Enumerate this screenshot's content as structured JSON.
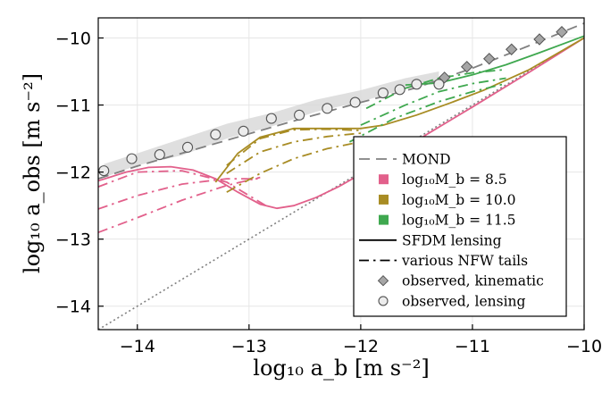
{
  "chart_data": {
    "type": "line",
    "xlabel": "log₁₀ a_b [m s⁻²]",
    "ylabel": "log₁₀ a_obs [m s⁻²]",
    "xlim": [
      -14.35,
      -10.0
    ],
    "ylim": [
      -14.35,
      -9.7
    ],
    "xticks": [
      -14,
      -13,
      -12,
      -11,
      -10
    ],
    "yticks": [
      -14,
      -13,
      -12,
      -11,
      -10
    ],
    "xtick_labels": [
      "−14",
      "−13",
      "−12",
      "−11",
      "−10"
    ],
    "ytick_labels": [
      "−14",
      "−13",
      "−12",
      "−11",
      "−10"
    ],
    "grid": true,
    "legend_position": "bottom-right",
    "colors": {
      "mond": "#808080",
      "mb85": "#e2608b",
      "mb100": "#a88c24",
      "mb115": "#3fa84f",
      "identity": "#808080",
      "band": "#d9d9d9"
    },
    "legend": [
      {
        "key": "mond",
        "label": "MOND",
        "style": "dashed"
      },
      {
        "key": "mb85",
        "label": "log₁₀M_b = 8.5",
        "style": "square"
      },
      {
        "key": "mb100",
        "label": "log₁₀M_b = 10.0",
        "style": "square"
      },
      {
        "key": "mb115",
        "label": "log₁₀M_b = 11.5",
        "style": "square"
      },
      {
        "key": "sfdm",
        "label": "SFDM lensing",
        "style": "solid"
      },
      {
        "key": "nfw",
        "label": "various NFW tails",
        "style": "dashdot"
      },
      {
        "key": "kin",
        "label": "observed, kinematic",
        "style": "diamond"
      },
      {
        "key": "lens",
        "label": "observed, lensing",
        "style": "circle"
      }
    ],
    "series": [
      {
        "name": "MOND",
        "color_key": "mond",
        "style": "dashed",
        "x": [
          -14.35,
          -14.0,
          -13.5,
          -13.0,
          -12.5,
          -12.0,
          -11.5,
          -11.0,
          -10.5,
          -10.0
        ],
        "y": [
          -12.1,
          -11.91,
          -11.67,
          -11.43,
          -11.19,
          -10.96,
          -10.74,
          -10.45,
          -10.12,
          -9.78
        ]
      },
      {
        "name": "identity",
        "color_key": "identity",
        "style": "dotted",
        "x": [
          -14.35,
          -10.0
        ],
        "y": [
          -14.35,
          -10.0
        ]
      },
      {
        "name": "SFDM lensing, log10 Mb = 8.5",
        "color_key": "mb85",
        "style": "solid",
        "x": [
          -14.35,
          -14.1,
          -13.9,
          -13.7,
          -13.5,
          -13.3,
          -13.1,
          -12.9,
          -12.75,
          -12.6,
          -12.4,
          -12.2,
          -12.0,
          -11.7,
          -11.4,
          -11.0,
          -10.5,
          -10.0
        ],
        "y": [
          -12.13,
          -12.0,
          -11.93,
          -11.92,
          -11.97,
          -12.1,
          -12.3,
          -12.48,
          -12.54,
          -12.5,
          -12.38,
          -12.22,
          -12.03,
          -11.75,
          -11.43,
          -11.03,
          -10.52,
          -10.0
        ]
      },
      {
        "name": "SFDM lensing, log10 Mb = 10.0",
        "color_key": "mb100",
        "style": "solid",
        "x": [
          -13.3,
          -13.1,
          -12.9,
          -12.6,
          -12.3,
          -12.0,
          -11.8,
          -11.5,
          -11.2,
          -10.9,
          -10.5,
          -10.0
        ],
        "y": [
          -12.15,
          -11.72,
          -11.48,
          -11.35,
          -11.35,
          -11.35,
          -11.3,
          -11.15,
          -10.97,
          -10.78,
          -10.48,
          -10.0
        ]
      },
      {
        "name": "SFDM lensing, log10 Mb = 11.5",
        "color_key": "mb115",
        "style": "solid",
        "x": [
          -11.6,
          -11.3,
          -11.0,
          -10.7,
          -10.4,
          -10.0
        ],
        "y": [
          -10.7,
          -10.67,
          -10.55,
          -10.4,
          -10.22,
          -9.97
        ]
      },
      {
        "name": "NFW tail 8.5 a",
        "color_key": "mb85",
        "style": "dashdot",
        "x": [
          -14.35,
          -14.0,
          -13.6,
          -13.2,
          -12.85
        ],
        "y": [
          -12.22,
          -12.0,
          -11.98,
          -12.15,
          -12.5
        ]
      },
      {
        "name": "NFW tail 8.5 b",
        "color_key": "mb85",
        "style": "dashdot",
        "x": [
          -14.35,
          -14.0,
          -13.6,
          -13.2,
          -12.9
        ],
        "y": [
          -12.55,
          -12.35,
          -12.18,
          -12.1,
          -12.1
        ]
      },
      {
        "name": "NFW tail 8.5 c",
        "color_key": "mb85",
        "style": "dashdot",
        "x": [
          -14.35,
          -14.0,
          -13.6,
          -13.2,
          -12.9
        ],
        "y": [
          -12.9,
          -12.68,
          -12.42,
          -12.2,
          -12.08
        ]
      },
      {
        "name": "NFW tail 10.0 a",
        "color_key": "mb100",
        "style": "dashdot",
        "x": [
          -13.2,
          -12.9,
          -12.6,
          -12.3,
          -12.0
        ],
        "y": [
          -11.9,
          -11.5,
          -11.37,
          -11.36,
          -11.38
        ]
      },
      {
        "name": "NFW tail 10.0 b",
        "color_key": "mb100",
        "style": "dashdot",
        "x": [
          -13.2,
          -12.9,
          -12.6,
          -12.3,
          -12.0
        ],
        "y": [
          -12.02,
          -11.7,
          -11.55,
          -11.47,
          -11.42
        ]
      },
      {
        "name": "NFW tail 10.0 c",
        "color_key": "mb100",
        "style": "dashdot",
        "x": [
          -13.2,
          -12.9,
          -12.6,
          -12.3,
          -12.0
        ],
        "y": [
          -12.3,
          -12.02,
          -11.8,
          -11.65,
          -11.55
        ]
      },
      {
        "name": "NFW tail 11.5 a",
        "color_key": "mb115",
        "style": "dashdot",
        "x": [
          -11.95,
          -11.6,
          -11.3,
          -11.0,
          -10.7
        ],
        "y": [
          -11.05,
          -10.75,
          -10.6,
          -10.52,
          -10.47
        ]
      },
      {
        "name": "NFW tail 11.5 b",
        "color_key": "mb115",
        "style": "dashdot",
        "x": [
          -12.0,
          -11.6,
          -11.3,
          -11.0,
          -10.7
        ],
        "y": [
          -11.3,
          -11.0,
          -10.8,
          -10.68,
          -10.6
        ]
      },
      {
        "name": "NFW tail 11.5 c",
        "color_key": "mb115",
        "style": "dashdot",
        "x": [
          -12.1,
          -11.7,
          -11.3,
          -11.0,
          -10.7
        ],
        "y": [
          -11.55,
          -11.2,
          -10.95,
          -10.8,
          -10.68
        ]
      }
    ],
    "band": {
      "name": "lensing uncertainty",
      "x": [
        -14.3,
        -14.0,
        -13.6,
        -13.2,
        -12.8,
        -12.4,
        -12.0,
        -11.6,
        -11.3
      ],
      "y_low": [
        -12.08,
        -11.9,
        -11.75,
        -11.5,
        -11.32,
        -11.1,
        -10.95,
        -10.76,
        -10.67
      ],
      "y_high": [
        -11.88,
        -11.72,
        -11.5,
        -11.28,
        -11.12,
        -10.92,
        -10.78,
        -10.6,
        -10.5
      ]
    },
    "observed_kinematic": {
      "x": [
        -11.25,
        -11.05,
        -10.85,
        -10.65,
        -10.4,
        -10.2
      ],
      "y": [
        -10.59,
        -10.43,
        -10.31,
        -10.17,
        -10.02,
        -9.91
      ]
    },
    "observed_lensing": {
      "x": [
        -14.3,
        -14.05,
        -13.8,
        -13.55,
        -13.3,
        -13.05,
        -12.8,
        -12.55,
        -12.3,
        -12.05,
        -11.8,
        -11.65,
        -11.5,
        -11.3
      ],
      "y": [
        -11.98,
        -11.8,
        -11.74,
        -11.63,
        -11.44,
        -11.39,
        -11.2,
        -11.15,
        -11.05,
        -10.96,
        -10.82,
        -10.77,
        -10.69,
        -10.69
      ]
    }
  }
}
